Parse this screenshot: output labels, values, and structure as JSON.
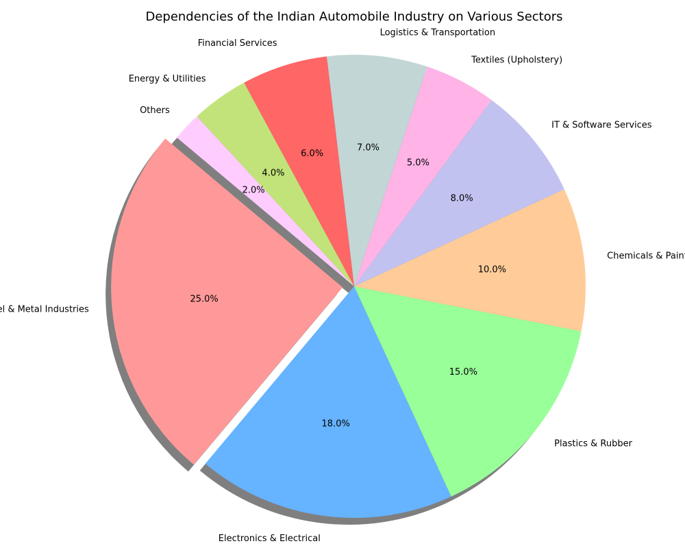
{
  "chart_data": {
    "type": "pie",
    "title": "Dependencies of the Indian Automobile Industry on Various Sectors",
    "start_angle_deg": 140,
    "direction": "counterclockwise",
    "shadow": true,
    "slices": [
      {
        "label": "Steel & Metal Industries",
        "value": 25.0,
        "pct_label": "25.0%",
        "color": "#ff9999",
        "exploded": true
      },
      {
        "label": "Electronics & Electrical",
        "value": 18.0,
        "pct_label": "18.0%",
        "color": "#66b3ff",
        "exploded": false
      },
      {
        "label": "Plastics & Rubber",
        "value": 15.0,
        "pct_label": "15.0%",
        "color": "#99ff99",
        "exploded": false
      },
      {
        "label": "Chemicals & Paints",
        "value": 10.0,
        "pct_label": "10.0%",
        "color": "#ffcc99",
        "exploded": false
      },
      {
        "label": "IT & Software Services",
        "value": 8.0,
        "pct_label": "8.0%",
        "color": "#c2c2f0",
        "exploded": false
      },
      {
        "label": "Textiles (Upholstery)",
        "value": 5.0,
        "pct_label": "5.0%",
        "color": "#ffb3e6",
        "exploded": false
      },
      {
        "label": "Logistics & Transportation",
        "value": 7.0,
        "pct_label": "7.0%",
        "color": "#c2d6d6",
        "exploded": false
      },
      {
        "label": "Financial Services",
        "value": 6.0,
        "pct_label": "6.0%",
        "color": "#ff6666",
        "exploded": false
      },
      {
        "label": "Energy & Utilities",
        "value": 4.0,
        "pct_label": "4.0%",
        "color": "#c2e37a",
        "exploded": false
      },
      {
        "label": "Others",
        "value": 2.0,
        "pct_label": "2.0%",
        "color": "#ffccff",
        "exploded": false
      }
    ]
  }
}
